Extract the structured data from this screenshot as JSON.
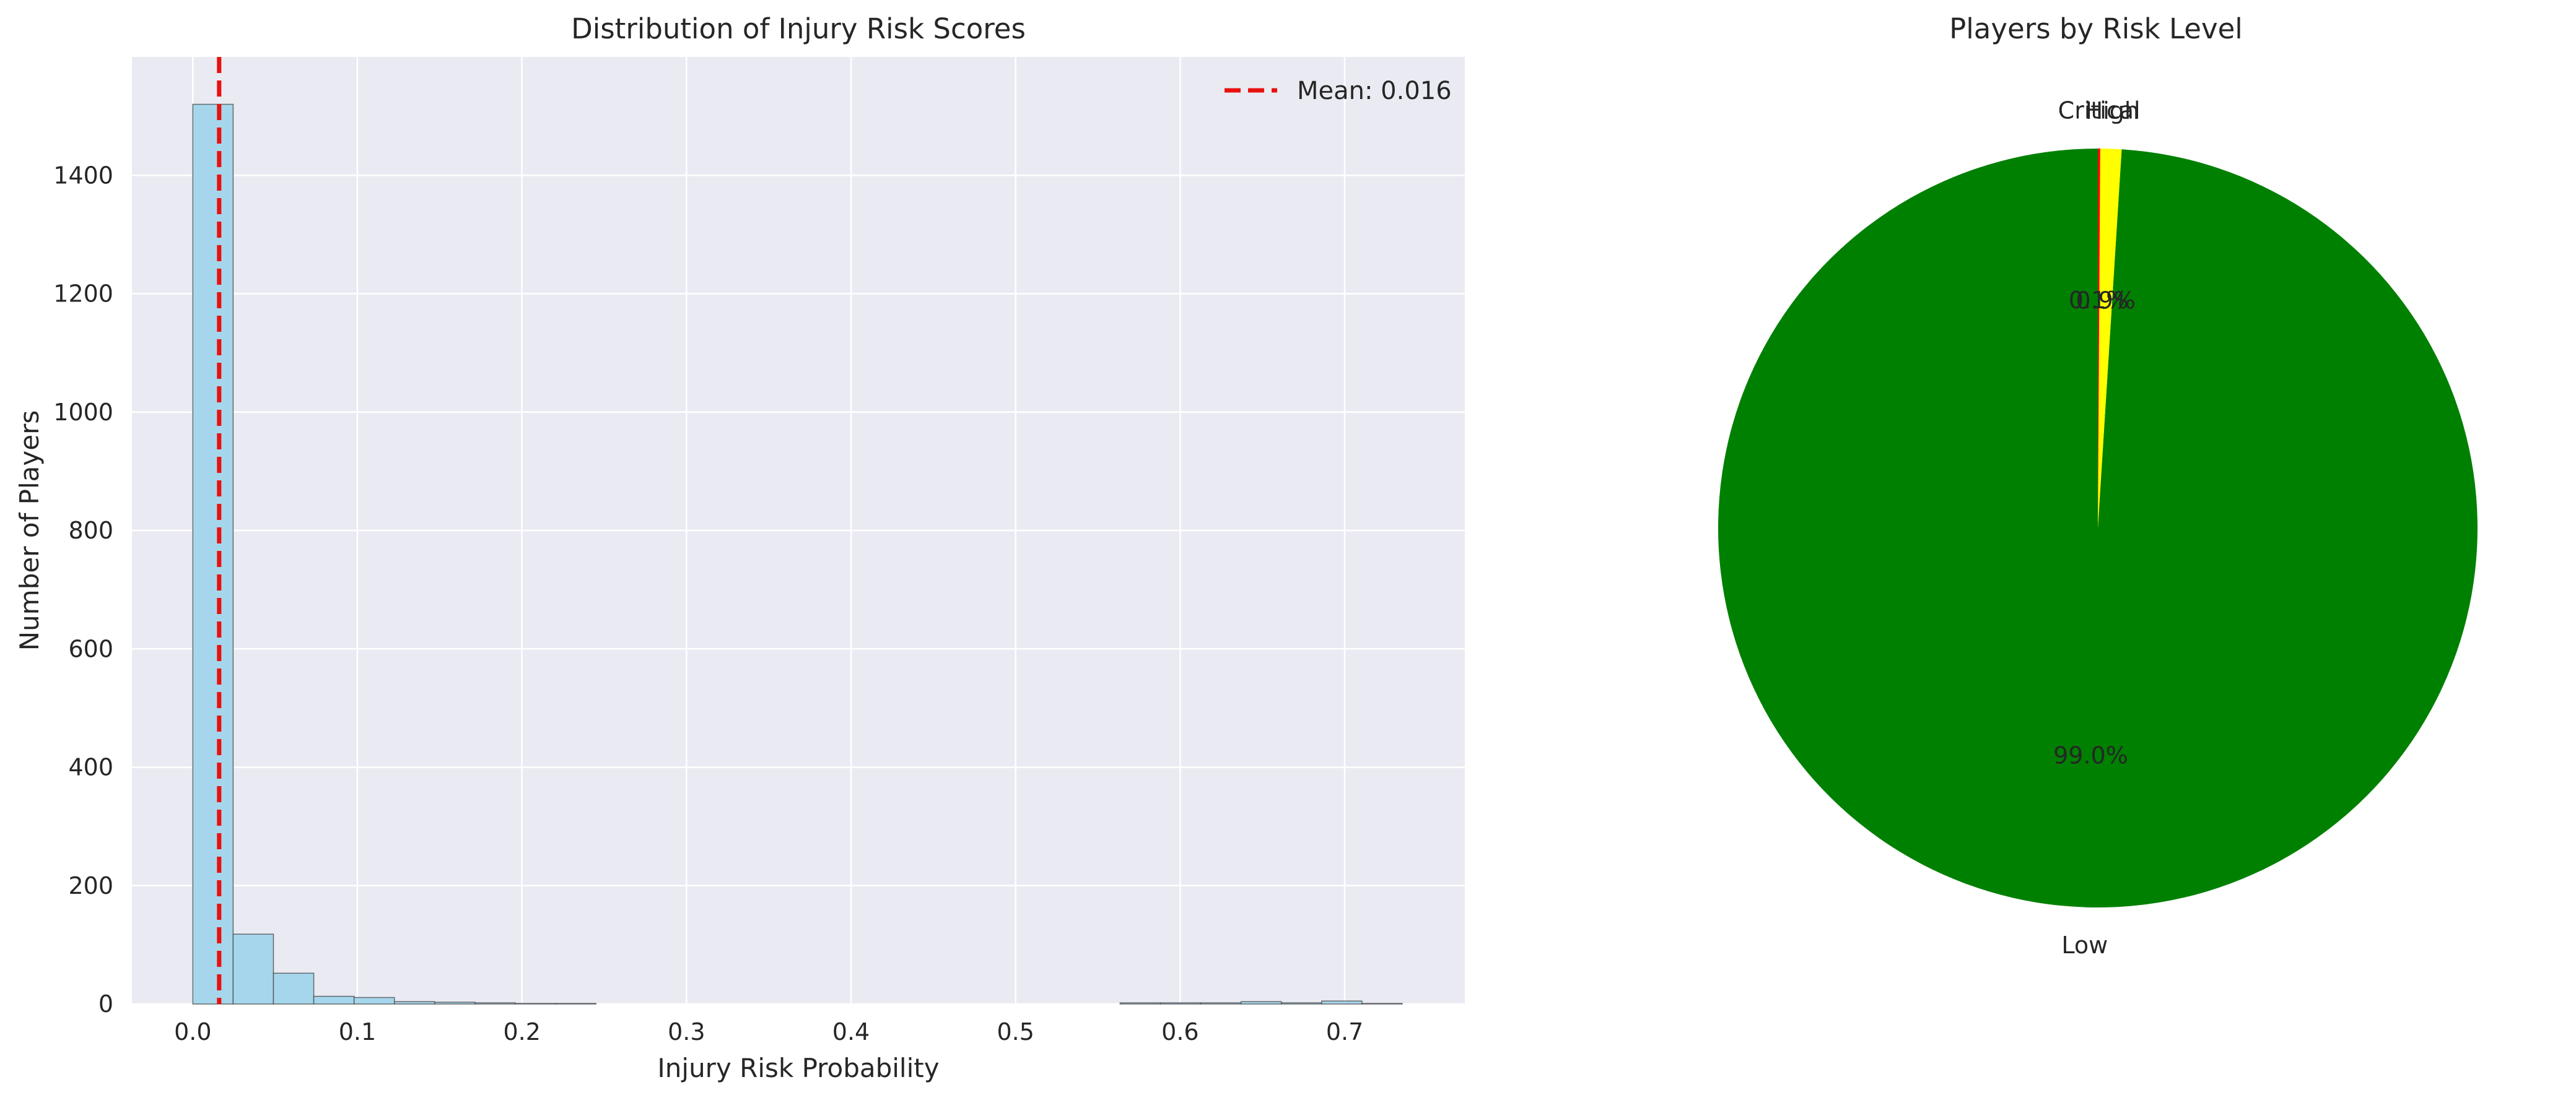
{
  "chart_data": [
    {
      "type": "bar",
      "subtype": "histogram",
      "title": "Distribution of Injury Risk Scores",
      "xlabel": "Injury Risk Probability",
      "ylabel": "Number of Players",
      "xlim": [
        -0.037,
        0.773
      ],
      "ylim": [
        0,
        1600
      ],
      "xticks": [
        "0.0",
        "0.1",
        "0.2",
        "0.3",
        "0.4",
        "0.5",
        "0.6",
        "0.7"
      ],
      "yticks": [
        "0",
        "200",
        "400",
        "600",
        "800",
        "1000",
        "1200",
        "1400"
      ],
      "bin_width": 0.0245,
      "bin_starts": [
        0.0,
        0.0245,
        0.049,
        0.0735,
        0.098,
        0.1225,
        0.147,
        0.1715,
        0.196,
        0.2205,
        0.5635,
        0.588,
        0.6125,
        0.637,
        0.6615,
        0.686,
        0.7105
      ],
      "values": [
        1520,
        118,
        52,
        13,
        11,
        4,
        3,
        2,
        1,
        1,
        2,
        2,
        2,
        4,
        2,
        5,
        1
      ],
      "bar_color": "#a6d6ec",
      "edge_color": "#4a4a4a",
      "mean_line": {
        "value": 0.016,
        "label": "Mean: 0.016",
        "color": "#e8110f"
      },
      "legend": "top-right",
      "grid": true,
      "background": "#eaeaf2"
    },
    {
      "type": "pie",
      "title": "Players by Risk Level",
      "labels": [
        "Low",
        "High",
        "Critical"
      ],
      "values": [
        99.0,
        0.9,
        0.1
      ],
      "pct_labels": [
        "99.0%",
        "0.9%",
        "0.1%"
      ],
      "colors": [
        "#008000",
        "#ffff00",
        "#ff0000"
      ],
      "start_angle": 90,
      "direction": "counterclockwise"
    }
  ]
}
